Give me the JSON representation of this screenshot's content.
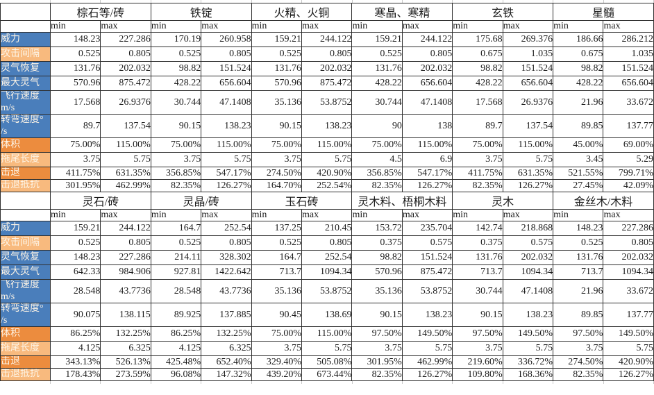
{
  "colors": {
    "row_label_blue": "#4a7ebb",
    "row_label_orange_dark": "#ec8c3e",
    "row_label_orange_light": "#f8ba7e",
    "label_text": "#fdf4e6",
    "grid_border": "#2e2e2e",
    "worksheet_gridline": "#c9c9c9"
  },
  "minmax_labels": [
    "min",
    "max"
  ],
  "row_labels": [
    {
      "lines": [
        "威力"
      ],
      "tone": "blue"
    },
    {
      "lines": [
        "攻击间隔"
      ],
      "tone": "orangeLight"
    },
    {
      "lines": [
        "灵气恢复"
      ],
      "tone": "blue"
    },
    {
      "lines": [
        "最大灵气"
      ],
      "tone": "blue"
    },
    {
      "lines": [
        "飞行速度",
        "m/s"
      ],
      "tone": "blue"
    },
    {
      "lines": [
        "转弯速度°",
        "/s"
      ],
      "tone": "blue"
    },
    {
      "lines": [
        "体积"
      ],
      "tone": "orangeDark"
    },
    {
      "lines": [
        "拖尾长度"
      ],
      "tone": "orangeLight"
    },
    {
      "lines": [
        "击退"
      ],
      "tone": "orangeDark"
    },
    {
      "lines": [
        "击退抵抗"
      ],
      "tone": "orangeLight"
    }
  ],
  "sections": [
    {
      "materials": [
        {
          "name": "棕石等/砖",
          "values": [
            [
              "148.23",
              "227.286"
            ],
            [
              "0.525",
              "0.805"
            ],
            [
              "131.76",
              "202.032"
            ],
            [
              "570.96",
              "875.472"
            ],
            [
              "17.568",
              "26.9376"
            ],
            [
              "89.7",
              "137.54"
            ],
            [
              "75.00%",
              "115.00%"
            ],
            [
              "3.75",
              "5.75"
            ],
            [
              "411.75%",
              "631.35%"
            ],
            [
              "301.95%",
              "462.99%"
            ]
          ]
        },
        {
          "name": "铁锭",
          "values": [
            [
              "170.19",
              "260.958"
            ],
            [
              "0.525",
              "0.805"
            ],
            [
              "98.82",
              "151.524"
            ],
            [
              "428.22",
              "656.604"
            ],
            [
              "30.744",
              "47.1408"
            ],
            [
              "90.15",
              "138.23"
            ],
            [
              "75.00%",
              "115.00%"
            ],
            [
              "3.75",
              "5.75"
            ],
            [
              "356.85%",
              "547.17%"
            ],
            [
              "82.35%",
              "126.27%"
            ]
          ]
        },
        {
          "name": "火精、火铜",
          "values": [
            [
              "159.21",
              "244.122"
            ],
            [
              "0.525",
              "0.805"
            ],
            [
              "131.76",
              "202.032"
            ],
            [
              "570.96",
              "875.472"
            ],
            [
              "35.136",
              "53.8752"
            ],
            [
              "90.15",
              "138.23"
            ],
            [
              "75.00%",
              "115.00%"
            ],
            [
              "3.75",
              "5.75"
            ],
            [
              "274.50%",
              "420.90%"
            ],
            [
              "164.70%",
              "252.54%"
            ]
          ]
        },
        {
          "name": "寒晶、寒精",
          "values": [
            [
              "159.21",
              "244.122"
            ],
            [
              "0.525",
              "0.805"
            ],
            [
              "131.76",
              "202.032"
            ],
            [
              "428.22",
              "656.604"
            ],
            [
              "30.744",
              "47.1408"
            ],
            [
              "90",
              "138"
            ],
            [
              "75.00%",
              "115.00%"
            ],
            [
              "4.5",
              "6.9"
            ],
            [
              "356.85%",
              "547.17%"
            ],
            [
              "82.35%",
              "126.27%"
            ]
          ]
        },
        {
          "name": "玄铁",
          "values": [
            [
              "175.68",
              "269.376"
            ],
            [
              "0.675",
              "1.035"
            ],
            [
              "98.82",
              "151.524"
            ],
            [
              "428.22",
              "656.604"
            ],
            [
              "17.568",
              "26.9376"
            ],
            [
              "89.7",
              "137.54"
            ],
            [
              "75.00%",
              "115.00%"
            ],
            [
              "3.75",
              "5.75"
            ],
            [
              "411.75%",
              "631.35%"
            ],
            [
              "82.35%",
              "126.27%"
            ]
          ]
        },
        {
          "name": "星髓",
          "values": [
            [
              "186.66",
              "286.212"
            ],
            [
              "0.675",
              "1.035"
            ],
            [
              "98.82",
              "151.524"
            ],
            [
              "428.22",
              "656.604"
            ],
            [
              "21.96",
              "33.672"
            ],
            [
              "89.85",
              "137.77"
            ],
            [
              "45.00%",
              "69.00%"
            ],
            [
              "3.45",
              "5.29"
            ],
            [
              "521.55%",
              "799.71%"
            ],
            [
              "27.45%",
              "42.09%"
            ]
          ]
        }
      ]
    },
    {
      "materials": [
        {
          "name": "灵石/砖",
          "values": [
            [
              "159.21",
              "244.122"
            ],
            [
              "0.525",
              "0.805"
            ],
            [
              "148.23",
              "227.286"
            ],
            [
              "642.33",
              "984.906"
            ],
            [
              "28.548",
              "43.7736"
            ],
            [
              "90.075",
              "138.115"
            ],
            [
              "86.25%",
              "132.25%"
            ],
            [
              "4.125",
              "6.325"
            ],
            [
              "343.13%",
              "526.13%"
            ],
            [
              "178.43%",
              "273.59%"
            ]
          ]
        },
        {
          "name": "灵晶/砖",
          "values": [
            [
              "164.7",
              "252.54"
            ],
            [
              "0.525",
              "0.805"
            ],
            [
              "214.11",
              "328.302"
            ],
            [
              "927.81",
              "1422.642"
            ],
            [
              "28.548",
              "43.7736"
            ],
            [
              "89.925",
              "137.885"
            ],
            [
              "86.25%",
              "132.25%"
            ],
            [
              "4.125",
              "6.325"
            ],
            [
              "425.48%",
              "652.40%"
            ],
            [
              "96.08%",
              "147.32%"
            ]
          ]
        },
        {
          "name": "玉石砖",
          "values": [
            [
              "137.25",
              "210.45"
            ],
            [
              "0.525",
              "0.805"
            ],
            [
              "164.7",
              "252.54"
            ],
            [
              "713.7",
              "1094.34"
            ],
            [
              "35.136",
              "53.8752"
            ],
            [
              "90.45",
              "138.69"
            ],
            [
              "75.00%",
              "115.00%"
            ],
            [
              "3.75",
              "5.75"
            ],
            [
              "329.40%",
              "505.08%"
            ],
            [
              "439.20%",
              "673.44%"
            ]
          ]
        },
        {
          "name": "灵木料、梧桐木料",
          "values": [
            [
              "153.72",
              "235.704"
            ],
            [
              "0.375",
              "0.575"
            ],
            [
              "98.82",
              "151.524"
            ],
            [
              "570.96",
              "875.472"
            ],
            [
              "35.136",
              "53.8752"
            ],
            [
              "90.15",
              "138.23"
            ],
            [
              "97.50%",
              "149.50%"
            ],
            [
              "3.75",
              "5.75"
            ],
            [
              "301.95%",
              "462.99%"
            ],
            [
              "82.35%",
              "126.27%"
            ]
          ]
        },
        {
          "name": "灵木",
          "values": [
            [
              "142.74",
              "218.868"
            ],
            [
              "0.375",
              "0.575"
            ],
            [
              "131.76",
              "202.032"
            ],
            [
              "713.7",
              "1094.34"
            ],
            [
              "30.744",
              "47.1408"
            ],
            [
              "90.15",
              "138.23"
            ],
            [
              "97.50%",
              "149.50%"
            ],
            [
              "3.75",
              "5.75"
            ],
            [
              "219.60%",
              "336.72%"
            ],
            [
              "109.80%",
              "168.36%"
            ]
          ]
        },
        {
          "name": "金丝木/木料",
          "values": [
            [
              "148.23",
              "227.286"
            ],
            [
              "0.525",
              "0.805"
            ],
            [
              "131.76",
              "202.032"
            ],
            [
              "713.7",
              "1094.34"
            ],
            [
              "21.96",
              "33.672"
            ],
            [
              "89.85",
              "137.77"
            ],
            [
              "97.50%",
              "149.50%"
            ],
            [
              "3.75",
              "5.75"
            ],
            [
              "274.50%",
              "420.90%"
            ],
            [
              "82.35%",
              "126.27%"
            ]
          ]
        }
      ]
    }
  ]
}
